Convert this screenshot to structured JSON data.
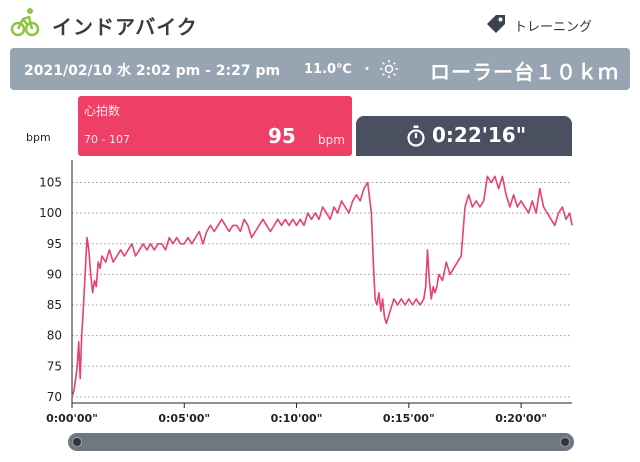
{
  "header": {
    "title": "インドアバイク",
    "tag_label": "トレーニング",
    "icons": {
      "activity": "bike-rider-icon",
      "tag": "tag-icon"
    }
  },
  "info": {
    "date_range": "2021/02/10 水 2:02 pm - 2:27 pm",
    "temperature": "11.0℃",
    "separator": "・",
    "weather_icon": "sun-icon",
    "course": "ローラー台１０ｋｍ"
  },
  "heart_rate": {
    "label": "心拍数",
    "range": "70 - 107",
    "value": "95",
    "unit": "bpm"
  },
  "duration": {
    "icon": "stopwatch-icon",
    "value": "0:22'16\""
  },
  "colors": {
    "accent": "#ee3f67",
    "bar": "#97a4b1",
    "dark": "#4a5060"
  },
  "chart_data": {
    "type": "line",
    "ylabel": "bpm",
    "ylim": [
      69,
      109
    ],
    "yticks": [
      70,
      75,
      80,
      85,
      90,
      95,
      100,
      105
    ],
    "xlim": [
      0,
      1336
    ],
    "xticks": [
      0,
      300,
      600,
      900,
      1200
    ],
    "xtick_labels": [
      "0:00'00\"",
      "0:05'00\"",
      "0:10'00\"",
      "0:15'00\"",
      "0:20'00\""
    ],
    "grid": "horizontal-dotted",
    "series": [
      {
        "color": "#e8416a",
        "x": [
          0,
          5,
          10,
          14,
          18,
          22,
          26,
          30,
          35,
          40,
          45,
          50,
          55,
          60,
          65,
          70,
          75,
          80,
          90,
          100,
          110,
          120,
          130,
          140,
          150,
          160,
          170,
          180,
          190,
          200,
          210,
          220,
          230,
          240,
          250,
          260,
          270,
          280,
          290,
          300,
          310,
          320,
          330,
          340,
          350,
          360,
          370,
          380,
          390,
          400,
          410,
          420,
          430,
          440,
          450,
          460,
          470,
          480,
          490,
          500,
          510,
          520,
          530,
          540,
          550,
          560,
          570,
          580,
          590,
          600,
          610,
          620,
          630,
          640,
          650,
          660,
          670,
          680,
          690,
          700,
          710,
          720,
          730,
          740,
          750,
          760,
          770,
          780,
          790,
          800,
          805,
          810,
          815,
          820,
          825,
          830,
          835,
          840,
          850,
          860,
          870,
          880,
          890,
          900,
          910,
          920,
          930,
          940,
          945,
          950,
          955,
          960,
          965,
          970,
          975,
          980,
          990,
          1000,
          1010,
          1020,
          1030,
          1040,
          1050,
          1060,
          1070,
          1080,
          1090,
          1100,
          1110,
          1120,
          1130,
          1140,
          1150,
          1160,
          1170,
          1180,
          1190,
          1200,
          1210,
          1220,
          1230,
          1240,
          1250,
          1260,
          1270,
          1280,
          1290,
          1300,
          1310,
          1320,
          1330,
          1336
        ],
        "values": [
          70,
          71,
          73,
          75,
          79,
          73,
          80,
          84,
          90,
          96,
          94,
          90,
          87,
          89,
          88,
          92,
          91,
          93,
          92,
          94,
          92,
          93,
          94,
          93,
          94,
          95,
          93,
          94,
          95,
          94,
          95,
          94,
          95,
          95,
          94,
          96,
          95,
          96,
          95,
          95,
          96,
          95,
          96,
          97,
          95,
          97,
          98,
          97,
          98,
          99,
          98,
          97,
          98,
          98,
          97,
          99,
          98,
          96,
          97,
          98,
          99,
          98,
          97,
          98,
          99,
          98,
          99,
          98,
          99,
          98,
          99,
          98,
          100,
          99,
          100,
          99,
          101,
          100,
          99,
          101,
          100,
          102,
          101,
          100,
          102,
          103,
          102,
          104,
          105,
          100,
          92,
          86,
          85,
          87,
          84,
          86,
          83,
          82,
          84,
          86,
          85,
          86,
          85,
          86,
          85,
          86,
          85,
          86,
          88,
          94,
          89,
          86,
          88,
          87,
          88,
          90,
          89,
          92,
          90,
          91,
          92,
          93,
          101,
          103,
          101,
          102,
          101,
          102,
          106,
          105,
          106,
          104,
          106,
          103,
          101,
          103,
          101,
          102,
          101,
          100,
          102,
          100,
          104,
          101,
          100,
          99,
          98,
          100,
          101,
          99,
          100,
          98
        ]
      }
    ]
  },
  "scrollbar": {
    "start": 0,
    "end": 1
  }
}
